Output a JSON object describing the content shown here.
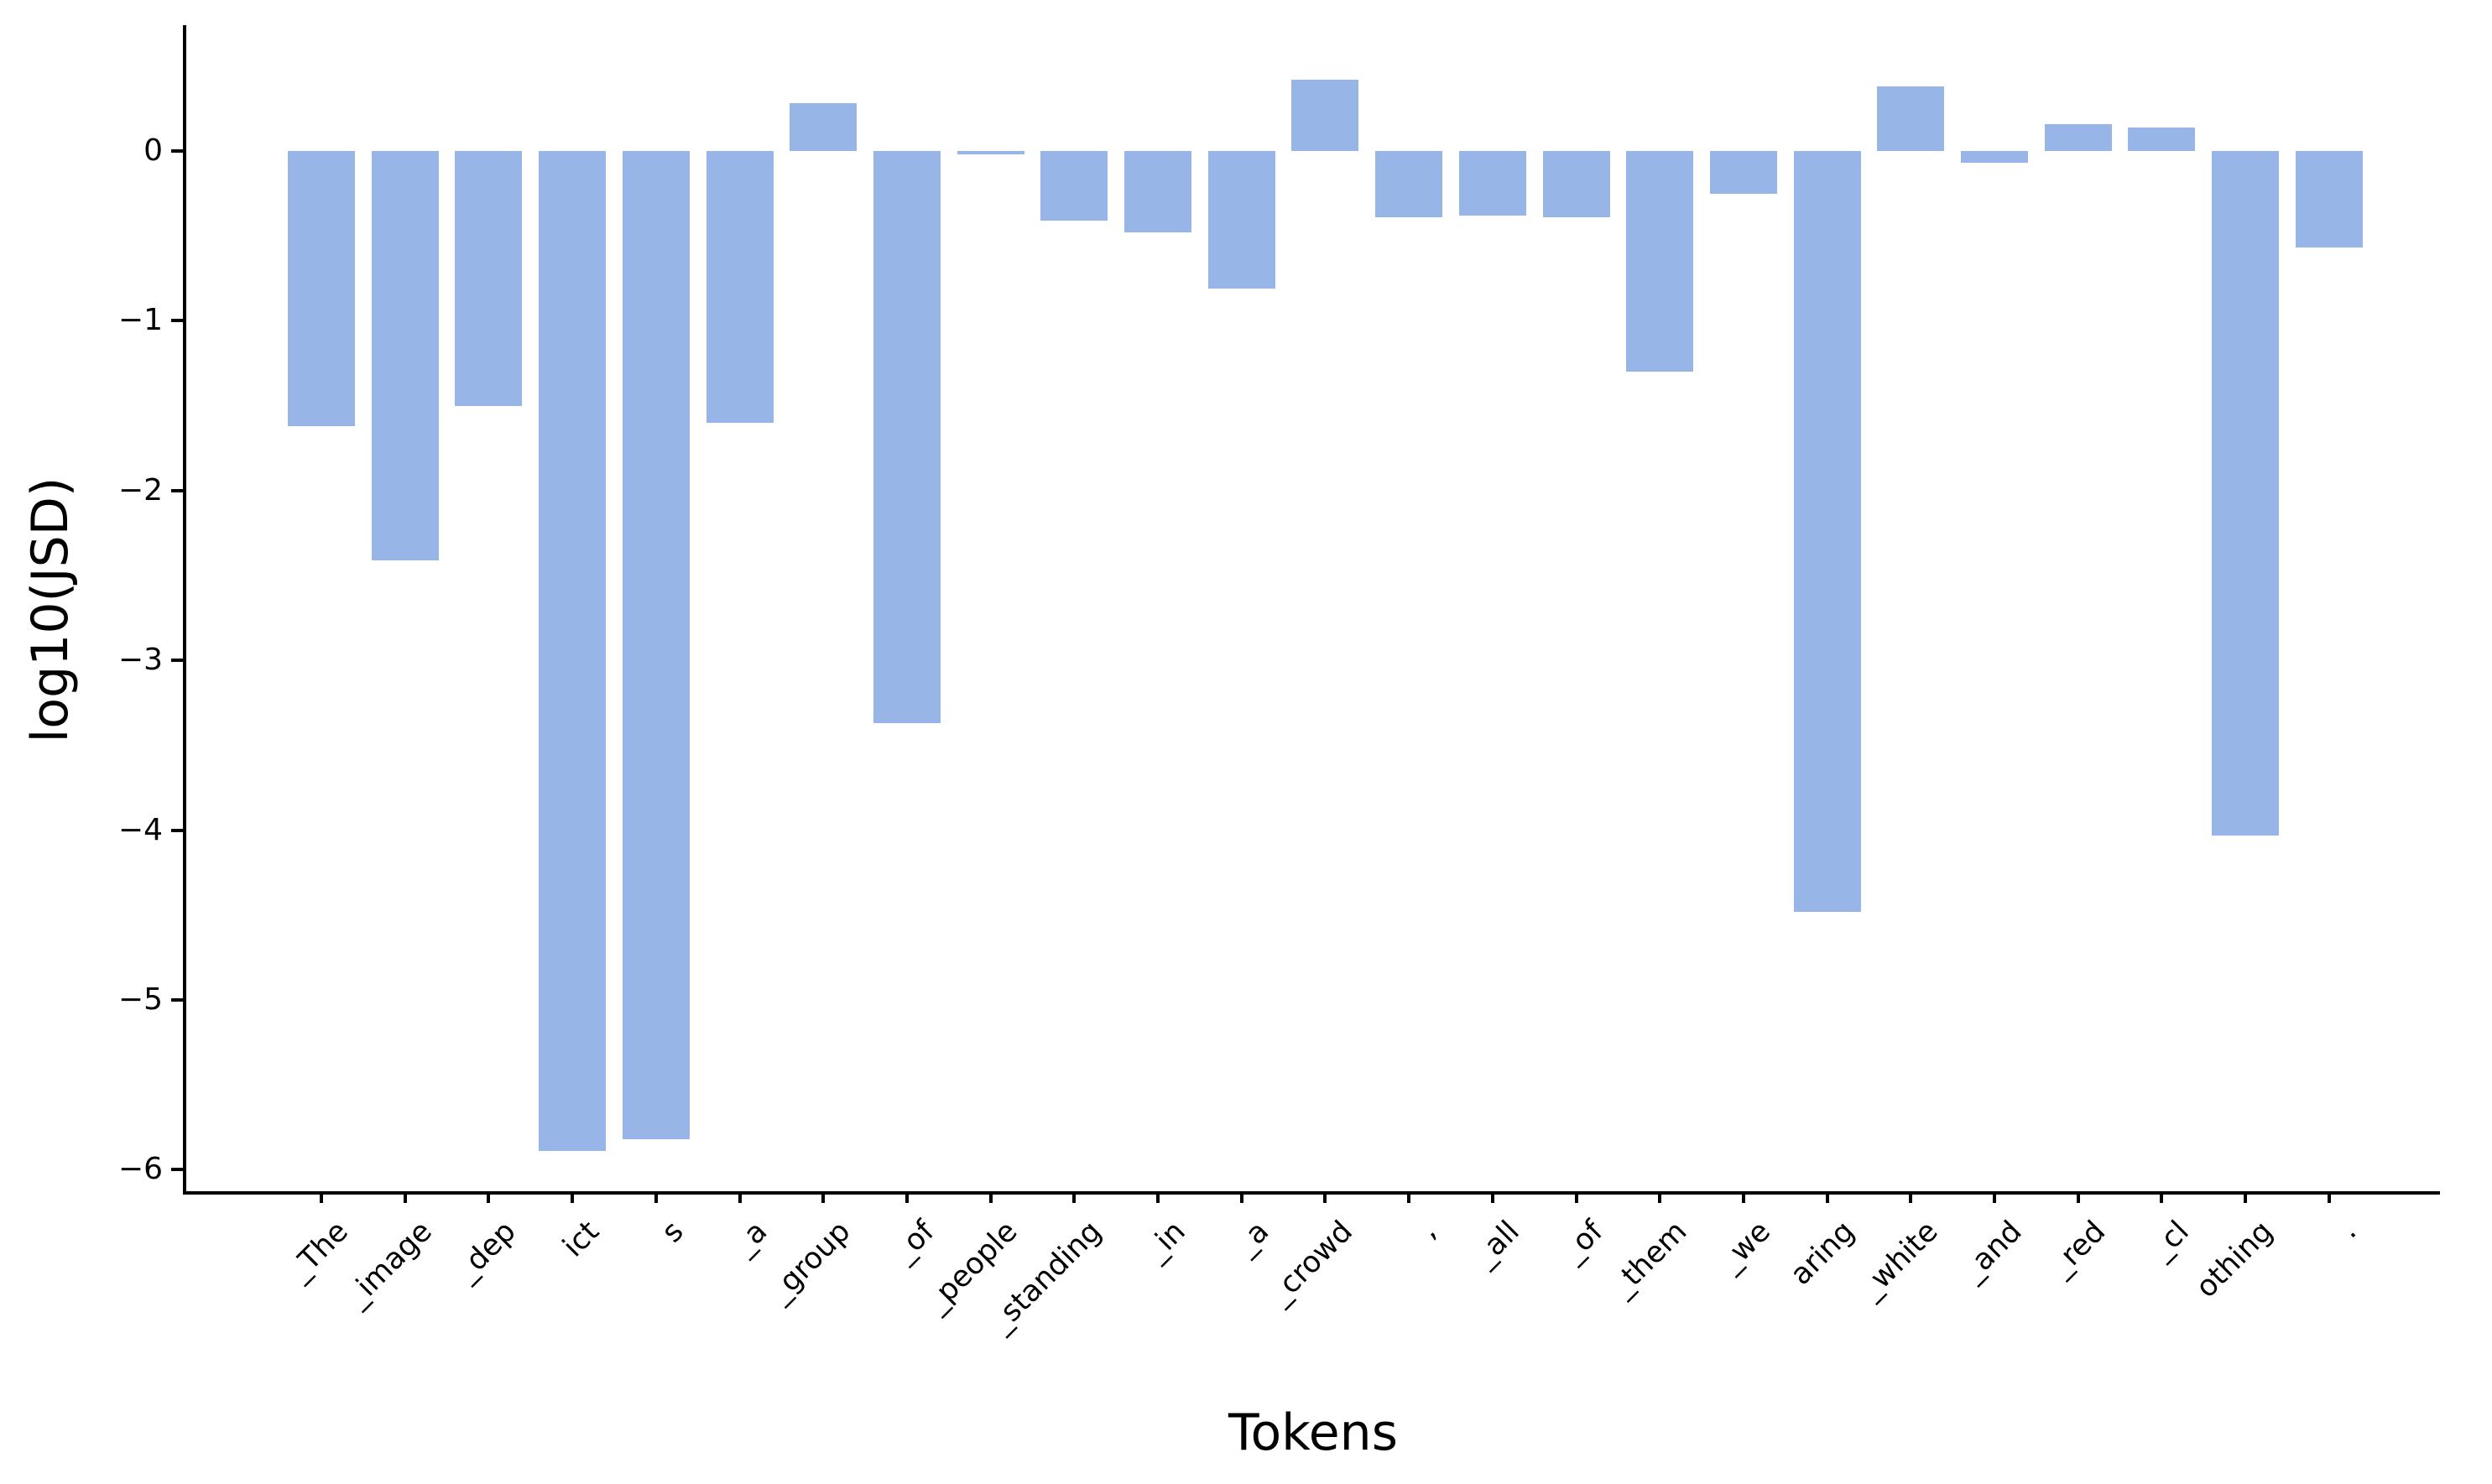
{
  "chart_data": {
    "type": "bar",
    "title": "",
    "xlabel": "Tokens",
    "ylabel": "log10(JSD)",
    "categories": [
      "_The",
      "_image",
      "_dep",
      "ict",
      "s",
      "_a",
      "_group",
      "_of",
      "_people",
      "_standing",
      "_in",
      "_a",
      "_crowd",
      ",",
      "_all",
      "_of",
      "_them",
      "_we",
      "aring",
      "_white",
      "_and",
      "_red",
      "_cl",
      "othing",
      "."
    ],
    "values": [
      -1.62,
      -2.41,
      -1.5,
      -5.89,
      -5.82,
      -1.6,
      0.28,
      -3.37,
      -0.02,
      -0.41,
      -0.48,
      -0.81,
      0.42,
      -0.39,
      -0.38,
      -0.39,
      -1.3,
      -0.25,
      -4.48,
      0.38,
      -0.07,
      0.16,
      0.14,
      -4.03,
      -0.57
    ],
    "yticks": [
      0,
      -1,
      -2,
      -3,
      -4,
      -5,
      -6
    ],
    "ytick_labels": [
      "0",
      "−1",
      "−2",
      "−3",
      "−4",
      "−5",
      "−6"
    ],
    "ylim": [
      -6.13,
      0.74
    ],
    "bar_color": "#97b5e6",
    "axis_color": "#000000",
    "background_color": "#ffffff",
    "grid": false,
    "legend": null
  }
}
